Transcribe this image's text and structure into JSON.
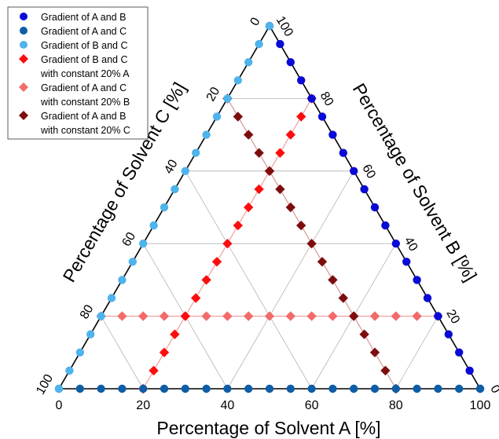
{
  "chart_data": {
    "type": "scatter",
    "subtype": "ternary",
    "axes": {
      "a_label": "Percentage of Solvent A [%]",
      "b_label": "Percentage of Solvent B [%]",
      "c_label": "Percentage of Solvent C [%]",
      "range": [
        0,
        100
      ],
      "ticks": [
        0,
        20,
        40,
        60,
        80,
        100
      ],
      "grid_step": 20,
      "grid": true
    },
    "legend": {
      "position": "top-left",
      "entries": [
        {
          "series": "grad_ab",
          "lines": [
            "Gradient of A and B"
          ]
        },
        {
          "series": "grad_ac",
          "lines": [
            "Gradient of A and C"
          ]
        },
        {
          "series": "grad_bc",
          "lines": [
            "Gradient of B and C"
          ]
        },
        {
          "series": "grad_bc_20a",
          "lines": [
            "Gradient of B and C",
            "with constant 20% A"
          ]
        },
        {
          "series": "grad_ac_20b",
          "lines": [
            "Gradient of A and C",
            "with constant 20% B"
          ]
        },
        {
          "series": "grad_ab_20c",
          "lines": [
            "Gradient of A and B",
            "with constant 20% C"
          ]
        }
      ]
    },
    "series": [
      {
        "id": "grad_ab",
        "name": "Gradient of A and B",
        "marker": "circle",
        "color": "#0a0ad6",
        "line_color": "#000000",
        "A": [
          0,
          5,
          10,
          15,
          20,
          25,
          30,
          35,
          40,
          45,
          50,
          55,
          60,
          65,
          70,
          75,
          80,
          85,
          90,
          95,
          100
        ],
        "B": "100-A",
        "C": 0
      },
      {
        "id": "grad_ac",
        "name": "Gradient of A and C",
        "marker": "circle",
        "color": "#0d5ea6",
        "line_color": "#000000",
        "A": [
          0,
          5,
          10,
          15,
          20,
          25,
          30,
          35,
          40,
          45,
          50,
          55,
          60,
          65,
          70,
          75,
          80,
          85,
          90,
          95,
          100
        ],
        "B": 0,
        "C": "100-A"
      },
      {
        "id": "grad_bc",
        "name": "Gradient of B and C",
        "marker": "circle",
        "color": "#4fb3ec",
        "line_color": "#000000",
        "B": [
          0,
          5,
          10,
          15,
          20,
          25,
          30,
          35,
          40,
          45,
          50,
          55,
          60,
          65,
          70,
          75,
          80,
          85,
          90,
          95,
          100
        ],
        "A": 0,
        "C": "100-B"
      },
      {
        "id": "grad_bc_20a",
        "name": "Gradient of B and C with constant 20% A",
        "marker": "diamond",
        "color": "#fc0d0d",
        "line_color": "#f2a0a0",
        "B": [
          0,
          5,
          10,
          15,
          20,
          25,
          30,
          35,
          40,
          45,
          50,
          55,
          60,
          65,
          70,
          75,
          80
        ],
        "A": 20,
        "C": "80-B"
      },
      {
        "id": "grad_ac_20b",
        "name": "Gradient of A and C with constant 20% B",
        "marker": "diamond",
        "color": "#f26b6b",
        "line_color": "#f2a0a0",
        "A": [
          0,
          5,
          10,
          15,
          20,
          25,
          30,
          35,
          40,
          45,
          50,
          55,
          60,
          65,
          70,
          75,
          80
        ],
        "B": 20,
        "C": "80-A"
      },
      {
        "id": "grad_ab_20c",
        "name": "Gradient of A and B with constant 20% C",
        "marker": "diamond",
        "color": "#7d0d0d",
        "line_color": "#d49a9a",
        "A": [
          0,
          5,
          10,
          15,
          20,
          25,
          30,
          35,
          40,
          45,
          50,
          55,
          60,
          65,
          70,
          75,
          80
        ],
        "C": 20,
        "B": "80-A"
      }
    ]
  }
}
